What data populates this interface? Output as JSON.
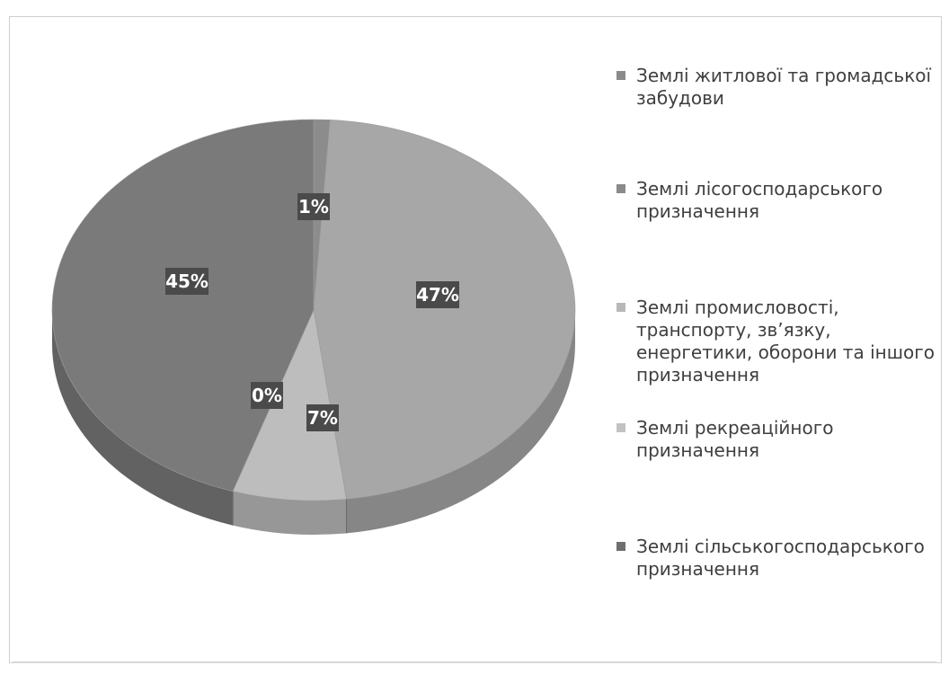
{
  "chart_data": {
    "type": "pie",
    "title": "",
    "series": [
      {
        "label": "Землі житлової та громадської забудови",
        "value": 1,
        "data_label": "1%",
        "color": "#8c8c8c"
      },
      {
        "label": "Землі лісогосподарського призначення",
        "value": 47,
        "data_label": "47%",
        "color": "#a7a7a7"
      },
      {
        "label": "Землі промисловості, транспорту, зв’язку, енергетики, оборони та іншого призначення",
        "value": 7,
        "data_label": "7%",
        "color": "#bdbdbd"
      },
      {
        "label": "Землі рекреаційного призначення",
        "value": 0,
        "data_label": "0%",
        "color": "#c9c9c9"
      },
      {
        "label": "Землі сільськогосподарського призначення",
        "value": 45,
        "data_label": "45%",
        "color": "#7a7a7a"
      }
    ],
    "legend_position": "right",
    "style": "3d"
  }
}
